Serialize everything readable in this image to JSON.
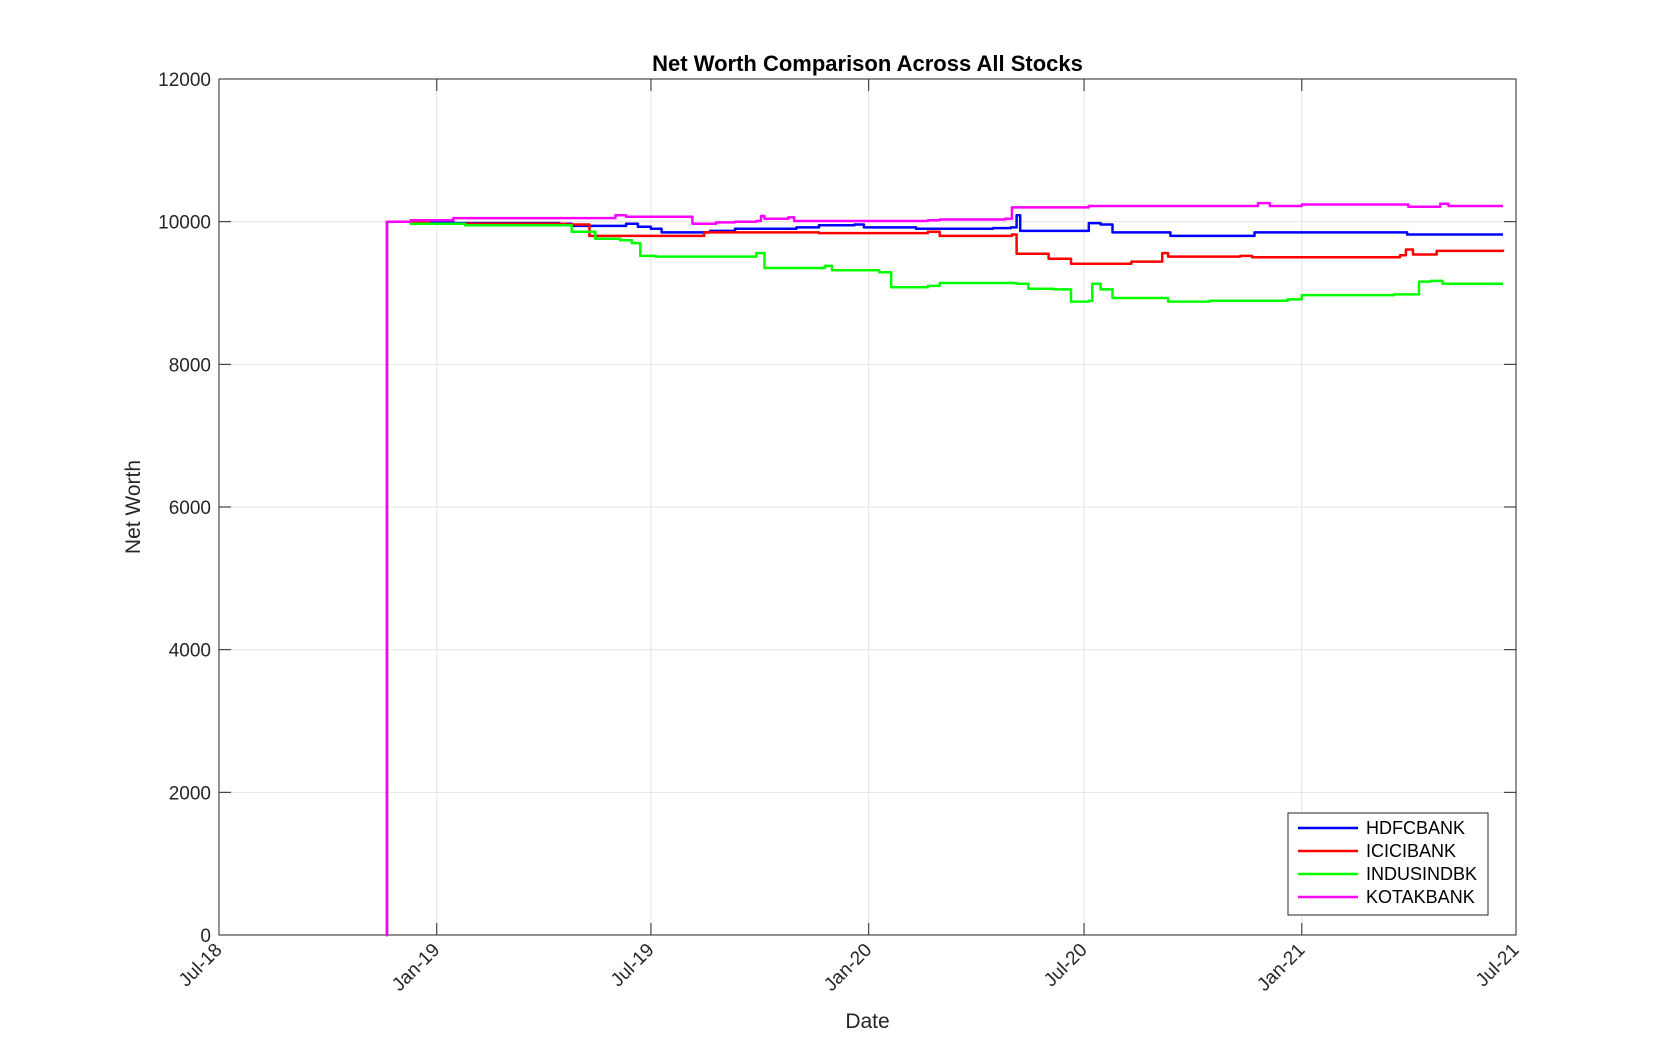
{
  "chart_data": {
    "type": "line",
    "title": "Net Worth Comparison Across All Stocks",
    "xlabel": "Date",
    "ylabel": "Net Worth",
    "xlim": [
      "2018-07-01",
      "2021-07-01"
    ],
    "ylim": [
      0,
      12000
    ],
    "x_ticks": [
      {
        "date": "2018-07-01",
        "label": "Jul-18"
      },
      {
        "date": "2019-01-01",
        "label": "Jan-19"
      },
      {
        "date": "2019-07-01",
        "label": "Jul-19"
      },
      {
        "date": "2020-01-01",
        "label": "Jan-20"
      },
      {
        "date": "2020-07-01",
        "label": "Jul-20"
      },
      {
        "date": "2021-01-01",
        "label": "Jan-21"
      },
      {
        "date": "2021-07-01",
        "label": "Jul-21"
      }
    ],
    "y_ticks": [
      0,
      2000,
      4000,
      6000,
      8000,
      10000,
      12000
    ],
    "grid": true,
    "legend_position": "bottom-right",
    "series": [
      {
        "name": "HDFCBANK",
        "color": "#0000ff",
        "points": [
          [
            "2018-11-19",
            0
          ],
          [
            "2018-11-20",
            10000
          ],
          [
            "2018-12-10",
            10000
          ],
          [
            "2019-01-15",
            9980
          ],
          [
            "2019-04-15",
            9970
          ],
          [
            "2019-04-25",
            9940
          ],
          [
            "2019-06-05",
            9940
          ],
          [
            "2019-06-10",
            9970
          ],
          [
            "2019-06-20",
            9930
          ],
          [
            "2019-07-01",
            9900
          ],
          [
            "2019-07-10",
            9850
          ],
          [
            "2019-08-20",
            9870
          ],
          [
            "2019-09-10",
            9900
          ],
          [
            "2019-11-01",
            9920
          ],
          [
            "2019-11-20",
            9950
          ],
          [
            "2019-12-20",
            9960
          ],
          [
            "2019-12-28",
            9920
          ],
          [
            "2020-01-25",
            9920
          ],
          [
            "2020-02-10",
            9900
          ],
          [
            "2020-04-15",
            9910
          ],
          [
            "2020-04-30",
            9920
          ],
          [
            "2020-05-05",
            10090
          ],
          [
            "2020-05-08",
            9870
          ],
          [
            "2020-06-28",
            9870
          ],
          [
            "2020-07-05",
            9980
          ],
          [
            "2020-07-15",
            9960
          ],
          [
            "2020-07-25",
            9850
          ],
          [
            "2020-09-05",
            9850
          ],
          [
            "2020-09-12",
            9800
          ],
          [
            "2020-11-15",
            9800
          ],
          [
            "2020-11-22",
            9850
          ],
          [
            "2021-03-25",
            9850
          ],
          [
            "2021-03-31",
            9820
          ],
          [
            "2021-06-20",
            9820
          ]
        ]
      },
      {
        "name": "ICICIBANK",
        "color": "#ff0000",
        "points": [
          [
            "2018-11-19",
            0
          ],
          [
            "2018-11-20",
            10000
          ],
          [
            "2018-12-10",
            10000
          ],
          [
            "2018-12-25",
            9970
          ],
          [
            "2019-02-01",
            9970
          ],
          [
            "2019-04-20",
            9960
          ],
          [
            "2019-05-10",
            9800
          ],
          [
            "2019-06-30",
            9800
          ],
          [
            "2019-07-05",
            9800
          ],
          [
            "2019-08-15",
            9850
          ],
          [
            "2019-11-10",
            9850
          ],
          [
            "2019-11-20",
            9840
          ],
          [
            "2020-02-20",
            9860
          ],
          [
            "2020-03-01",
            9800
          ],
          [
            "2020-05-01",
            9820
          ],
          [
            "2020-05-05",
            9550
          ],
          [
            "2020-05-20",
            9550
          ],
          [
            "2020-06-01",
            9480
          ],
          [
            "2020-06-20",
            9410
          ],
          [
            "2020-07-15",
            9410
          ],
          [
            "2020-08-10",
            9440
          ],
          [
            "2020-09-05",
            9560
          ],
          [
            "2020-09-10",
            9510
          ],
          [
            "2020-11-10",
            9520
          ],
          [
            "2020-11-20",
            9500
          ],
          [
            "2021-03-25",
            9530
          ],
          [
            "2021-03-30",
            9610
          ],
          [
            "2021-04-05",
            9540
          ],
          [
            "2021-04-25",
            9590
          ],
          [
            "2021-06-20",
            9610
          ]
        ]
      },
      {
        "name": "INDUSINDBK",
        "color": "#00ff00",
        "points": [
          [
            "2018-11-19",
            0
          ],
          [
            "2018-11-20",
            10000
          ],
          [
            "2018-12-10",
            9970
          ],
          [
            "2019-01-25",
            9950
          ],
          [
            "2019-04-15",
            9950
          ],
          [
            "2019-04-25",
            9860
          ],
          [
            "2019-05-10",
            9860
          ],
          [
            "2019-05-15",
            9760
          ],
          [
            "2019-06-05",
            9740
          ],
          [
            "2019-06-15",
            9700
          ],
          [
            "2019-06-22",
            9520
          ],
          [
            "2019-07-05",
            9510
          ],
          [
            "2019-09-25",
            9510
          ],
          [
            "2019-09-28",
            9560
          ],
          [
            "2019-10-05",
            9350
          ],
          [
            "2019-11-20",
            9350
          ],
          [
            "2019-11-25",
            9380
          ],
          [
            "2019-12-01",
            9320
          ],
          [
            "2020-01-10",
            9290
          ],
          [
            "2020-01-20",
            9080
          ],
          [
            "2020-02-20",
            9100
          ],
          [
            "2020-03-01",
            9140
          ],
          [
            "2020-05-05",
            9130
          ],
          [
            "2020-05-15",
            9060
          ],
          [
            "2020-06-05",
            9050
          ],
          [
            "2020-06-20",
            8880
          ],
          [
            "2020-07-05",
            8890
          ],
          [
            "2020-07-08",
            9130
          ],
          [
            "2020-07-15",
            9050
          ],
          [
            "2020-07-25",
            8930
          ],
          [
            "2020-09-01",
            8930
          ],
          [
            "2020-09-10",
            8880
          ],
          [
            "2020-10-15",
            8890
          ],
          [
            "2020-12-20",
            8910
          ],
          [
            "2021-01-01",
            8970
          ],
          [
            "2021-03-20",
            8980
          ],
          [
            "2021-04-10",
            9160
          ],
          [
            "2021-04-20",
            9170
          ],
          [
            "2021-04-30",
            9130
          ],
          [
            "2021-06-20",
            9130
          ]
        ]
      },
      {
        "name": "KOTAKBANK",
        "color": "#ff00ff",
        "points": [
          [
            "2018-11-19",
            0
          ],
          [
            "2018-11-20",
            10000
          ],
          [
            "2018-12-10",
            10020
          ],
          [
            "2019-01-15",
            10050
          ],
          [
            "2019-05-25",
            10050
          ],
          [
            "2019-06-01",
            10090
          ],
          [
            "2019-06-10",
            10070
          ],
          [
            "2019-07-25",
            10070
          ],
          [
            "2019-08-05",
            9970
          ],
          [
            "2019-08-25",
            9990
          ],
          [
            "2019-09-10",
            10000
          ],
          [
            "2019-09-28",
            10010
          ],
          [
            "2019-10-02",
            10080
          ],
          [
            "2019-10-05",
            10040
          ],
          [
            "2019-10-25",
            10060
          ],
          [
            "2019-10-30",
            10010
          ],
          [
            "2019-12-20",
            10010
          ],
          [
            "2020-02-20",
            10020
          ],
          [
            "2020-03-01",
            10030
          ],
          [
            "2020-04-25",
            10040
          ],
          [
            "2020-05-01",
            10200
          ],
          [
            "2020-06-20",
            10200
          ],
          [
            "2020-07-05",
            10220
          ],
          [
            "2020-11-20",
            10220
          ],
          [
            "2020-11-25",
            10260
          ],
          [
            "2020-12-05",
            10220
          ],
          [
            "2021-01-01",
            10240
          ],
          [
            "2021-03-25",
            10240
          ],
          [
            "2021-04-01",
            10210
          ],
          [
            "2021-04-25",
            10210
          ],
          [
            "2021-04-28",
            10250
          ],
          [
            "2021-05-05",
            10220
          ],
          [
            "2021-06-20",
            10220
          ]
        ]
      }
    ]
  }
}
